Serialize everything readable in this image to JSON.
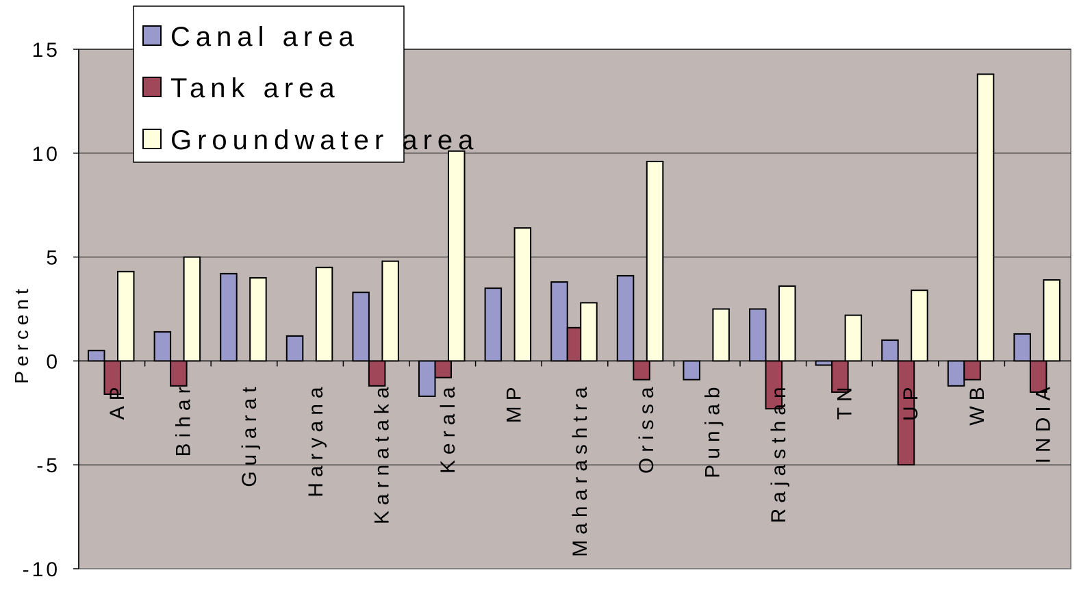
{
  "chart_data": {
    "type": "bar",
    "title": "",
    "xlabel": "",
    "ylabel": "Percent",
    "ylim": [
      -10,
      15
    ],
    "yticks": [
      15,
      10,
      5,
      0,
      -5,
      -10
    ],
    "grid": true,
    "legend_position": "top-left",
    "plot_background": "#c0b6b4",
    "categories": [
      "AP",
      "Bihar",
      "Gujarat",
      "Haryana",
      "Karnataka",
      "Kerala",
      "MP",
      "Maharashtra",
      "Orissa",
      "Punjab",
      "Rajasthan",
      "TN",
      "UP",
      "WB",
      "INDIA"
    ],
    "series": [
      {
        "name": "Canal area",
        "color": "#9999cc",
        "values": [
          0.5,
          1.4,
          4.2,
          1.2,
          3.3,
          -1.7,
          3.5,
          3.8,
          4.1,
          -0.9,
          2.5,
          -0.2,
          1.0,
          -1.2,
          1.3
        ]
      },
      {
        "name": "Tank area",
        "color": "#a0475a",
        "values": [
          -1.6,
          -1.2,
          0,
          0,
          -1.2,
          -0.8,
          0,
          1.6,
          -0.9,
          0,
          -2.3,
          -1.5,
          -5.0,
          -0.9,
          -1.5
        ]
      },
      {
        "name": "Groundwater area",
        "color": "#ffffdd",
        "values": [
          4.3,
          5.0,
          4.0,
          4.5,
          4.8,
          10.1,
          6.4,
          2.8,
          9.6,
          2.5,
          3.6,
          2.2,
          3.4,
          13.8,
          3.9
        ]
      }
    ]
  }
}
